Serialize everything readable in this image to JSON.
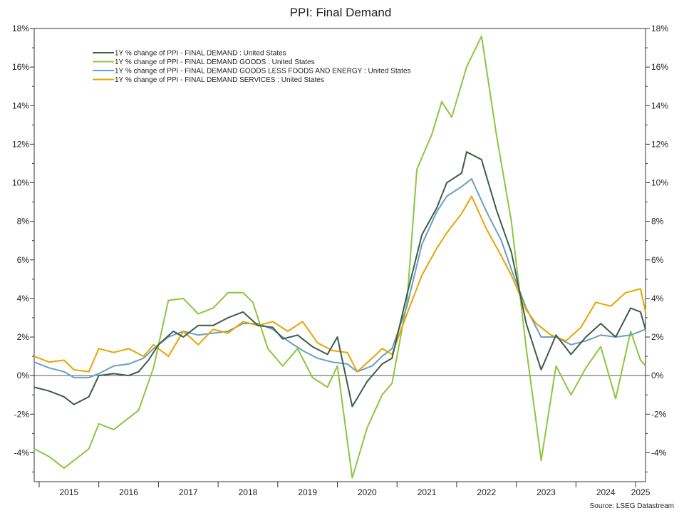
{
  "chart_data": {
    "type": "line",
    "title": "PPI: Final Demand",
    "source": "Source: LSEG Datastream",
    "ylim": [
      -5.5,
      18
    ],
    "y_ticks": [
      -4,
      -2,
      0,
      2,
      4,
      6,
      8,
      10,
      12,
      14,
      16,
      18
    ],
    "y_tick_labels": [
      "-4%",
      "-2%",
      "0%",
      "2%",
      "4%",
      "6%",
      "8%",
      "10%",
      "12%",
      "14%",
      "16%",
      "18%"
    ],
    "x_start": "2014-12",
    "x_end": "2025-03",
    "x_tick_labels": [
      "2015",
      "2016",
      "2017",
      "2018",
      "2019",
      "2020",
      "2021",
      "2022",
      "2023",
      "2024",
      "2025"
    ],
    "legend_position": "top-left",
    "zero_line": true,
    "series": [
      {
        "name": "1Y % change of PPI - FINAL DEMAND : United States",
        "color": "#3d5c4a",
        "points": [
          [
            "2014-12",
            -0.6
          ],
          [
            "2015-03",
            -0.8
          ],
          [
            "2015-06",
            -1.1
          ],
          [
            "2015-08",
            -1.5
          ],
          [
            "2015-11",
            -1.1
          ],
          [
            "2016-01",
            0.0
          ],
          [
            "2016-04",
            0.1
          ],
          [
            "2016-07",
            0.0
          ],
          [
            "2016-09",
            0.2
          ],
          [
            "2016-11",
            0.8
          ],
          [
            "2017-01",
            1.6
          ],
          [
            "2017-04",
            2.3
          ],
          [
            "2017-06",
            2.0
          ],
          [
            "2017-09",
            2.6
          ],
          [
            "2017-12",
            2.6
          ],
          [
            "2018-03",
            3.0
          ],
          [
            "2018-06",
            3.3
          ],
          [
            "2018-09",
            2.6
          ],
          [
            "2018-12",
            2.5
          ],
          [
            "2019-02",
            1.9
          ],
          [
            "2019-05",
            2.1
          ],
          [
            "2019-08",
            1.5
          ],
          [
            "2019-11",
            1.1
          ],
          [
            "2020-01",
            2.0
          ],
          [
            "2020-04",
            -1.6
          ],
          [
            "2020-07",
            -0.3
          ],
          [
            "2020-10",
            0.6
          ],
          [
            "2020-12",
            0.9
          ],
          [
            "2021-03",
            4.2
          ],
          [
            "2021-06",
            7.3
          ],
          [
            "2021-09",
            8.7
          ],
          [
            "2021-11",
            10.0
          ],
          [
            "2022-02",
            10.5
          ],
          [
            "2022-03",
            11.6
          ],
          [
            "2022-06",
            11.2
          ],
          [
            "2022-09",
            8.6
          ],
          [
            "2022-12",
            6.4
          ],
          [
            "2023-03",
            2.7
          ],
          [
            "2023-06",
            0.3
          ],
          [
            "2023-09",
            2.1
          ],
          [
            "2023-12",
            1.1
          ],
          [
            "2024-03",
            2.0
          ],
          [
            "2024-06",
            2.7
          ],
          [
            "2024-09",
            2.0
          ],
          [
            "2024-12",
            3.5
          ],
          [
            "2025-02",
            3.3
          ],
          [
            "2025-03",
            2.4
          ]
        ]
      },
      {
        "name": "1Y % change of PPI - FINAL DEMAND GOODS : United States",
        "color": "#8cc63f",
        "points": [
          [
            "2014-12",
            -3.8
          ],
          [
            "2015-03",
            -4.2
          ],
          [
            "2015-06",
            -4.8
          ],
          [
            "2015-09",
            -4.2
          ],
          [
            "2015-11",
            -3.8
          ],
          [
            "2016-01",
            -2.5
          ],
          [
            "2016-04",
            -2.8
          ],
          [
            "2016-07",
            -2.2
          ],
          [
            "2016-09",
            -1.8
          ],
          [
            "2016-12",
            0.4
          ],
          [
            "2017-03",
            3.9
          ],
          [
            "2017-06",
            4.0
          ],
          [
            "2017-09",
            3.2
          ],
          [
            "2017-12",
            3.5
          ],
          [
            "2018-03",
            4.3
          ],
          [
            "2018-06",
            4.3
          ],
          [
            "2018-08",
            3.8
          ],
          [
            "2018-11",
            1.4
          ],
          [
            "2019-02",
            0.5
          ],
          [
            "2019-05",
            1.4
          ],
          [
            "2019-08",
            -0.1
          ],
          [
            "2019-11",
            -0.6
          ],
          [
            "2020-01",
            0.5
          ],
          [
            "2020-04",
            -5.3
          ],
          [
            "2020-07",
            -2.7
          ],
          [
            "2020-10",
            -1.0
          ],
          [
            "2020-12",
            -0.4
          ],
          [
            "2021-03",
            3.8
          ],
          [
            "2021-05",
            10.7
          ],
          [
            "2021-08",
            12.5
          ],
          [
            "2021-10",
            14.2
          ],
          [
            "2021-12",
            13.4
          ],
          [
            "2022-03",
            16.0
          ],
          [
            "2022-06",
            17.6
          ],
          [
            "2022-09",
            12.5
          ],
          [
            "2022-12",
            8.0
          ],
          [
            "2023-03",
            1.4
          ],
          [
            "2023-05",
            -2.4
          ],
          [
            "2023-06",
            -4.4
          ],
          [
            "2023-09",
            0.5
          ],
          [
            "2023-12",
            -1.0
          ],
          [
            "2024-03",
            0.4
          ],
          [
            "2024-06",
            1.5
          ],
          [
            "2024-09",
            -1.2
          ],
          [
            "2024-12",
            2.3
          ],
          [
            "2025-02",
            0.8
          ],
          [
            "2025-03",
            0.5
          ]
        ]
      },
      {
        "name": "1Y % change of PPI - FINAL DEMAND GOODS LESS FOODS AND ENERGY : United States",
        "color": "#6a9fc3",
        "points": [
          [
            "2014-12",
            0.7
          ],
          [
            "2015-03",
            0.4
          ],
          [
            "2015-06",
            0.2
          ],
          [
            "2015-08",
            -0.1
          ],
          [
            "2015-11",
            -0.1
          ],
          [
            "2016-01",
            0.1
          ],
          [
            "2016-04",
            0.5
          ],
          [
            "2016-07",
            0.6
          ],
          [
            "2016-10",
            0.9
          ],
          [
            "2016-12",
            1.4
          ],
          [
            "2017-03",
            2.0
          ],
          [
            "2017-06",
            2.3
          ],
          [
            "2017-09",
            2.1
          ],
          [
            "2017-12",
            2.2
          ],
          [
            "2018-03",
            2.3
          ],
          [
            "2018-06",
            2.7
          ],
          [
            "2018-09",
            2.7
          ],
          [
            "2018-12",
            2.4
          ],
          [
            "2019-03",
            1.8
          ],
          [
            "2019-06",
            1.3
          ],
          [
            "2019-09",
            0.9
          ],
          [
            "2019-12",
            0.7
          ],
          [
            "2020-03",
            0.6
          ],
          [
            "2020-05",
            0.2
          ],
          [
            "2020-08",
            0.5
          ],
          [
            "2020-10",
            1.0
          ],
          [
            "2020-12",
            1.4
          ],
          [
            "2021-03",
            3.6
          ],
          [
            "2021-06",
            6.8
          ],
          [
            "2021-09",
            8.5
          ],
          [
            "2021-11",
            9.3
          ],
          [
            "2022-02",
            9.8
          ],
          [
            "2022-04",
            10.2
          ],
          [
            "2022-07",
            8.5
          ],
          [
            "2022-10",
            7.0
          ],
          [
            "2022-12",
            5.5
          ],
          [
            "2023-03",
            3.5
          ],
          [
            "2023-06",
            2.0
          ],
          [
            "2023-09",
            2.0
          ],
          [
            "2023-12",
            1.6
          ],
          [
            "2024-03",
            1.8
          ],
          [
            "2024-06",
            2.1
          ],
          [
            "2024-09",
            2.0
          ],
          [
            "2024-12",
            2.1
          ],
          [
            "2025-02",
            2.3
          ],
          [
            "2025-03",
            2.4
          ]
        ]
      },
      {
        "name": "1Y % change of PPI - FINAL DEMAND SERVICES : United States",
        "color": "#e8a400",
        "points": [
          [
            "2014-12",
            1.0
          ],
          [
            "2015-03",
            0.7
          ],
          [
            "2015-06",
            0.8
          ],
          [
            "2015-08",
            0.3
          ],
          [
            "2015-11",
            0.2
          ],
          [
            "2016-01",
            1.4
          ],
          [
            "2016-04",
            1.2
          ],
          [
            "2016-07",
            1.4
          ],
          [
            "2016-10",
            1.0
          ],
          [
            "2016-12",
            1.6
          ],
          [
            "2017-03",
            1.0
          ],
          [
            "2017-06",
            2.3
          ],
          [
            "2017-09",
            1.6
          ],
          [
            "2017-12",
            2.4
          ],
          [
            "2018-03",
            2.2
          ],
          [
            "2018-06",
            2.8
          ],
          [
            "2018-09",
            2.6
          ],
          [
            "2018-12",
            2.8
          ],
          [
            "2019-03",
            2.3
          ],
          [
            "2019-06",
            2.8
          ],
          [
            "2019-09",
            1.7
          ],
          [
            "2019-12",
            1.3
          ],
          [
            "2020-03",
            1.2
          ],
          [
            "2020-05",
            0.2
          ],
          [
            "2020-08",
            0.9
          ],
          [
            "2020-10",
            1.4
          ],
          [
            "2020-12",
            1.1
          ],
          [
            "2021-03",
            3.2
          ],
          [
            "2021-06",
            5.2
          ],
          [
            "2021-09",
            6.6
          ],
          [
            "2021-11",
            7.4
          ],
          [
            "2022-02",
            8.4
          ],
          [
            "2022-04",
            9.3
          ],
          [
            "2022-07",
            7.6
          ],
          [
            "2022-10",
            6.2
          ],
          [
            "2022-12",
            5.2
          ],
          [
            "2023-03",
            3.4
          ],
          [
            "2023-05",
            2.7
          ],
          [
            "2023-08",
            2.1
          ],
          [
            "2023-11",
            1.8
          ],
          [
            "2024-02",
            2.5
          ],
          [
            "2024-05",
            3.8
          ],
          [
            "2024-08",
            3.6
          ],
          [
            "2024-11",
            4.3
          ],
          [
            "2025-02",
            4.5
          ],
          [
            "2025-03",
            3.3
          ]
        ]
      }
    ]
  }
}
